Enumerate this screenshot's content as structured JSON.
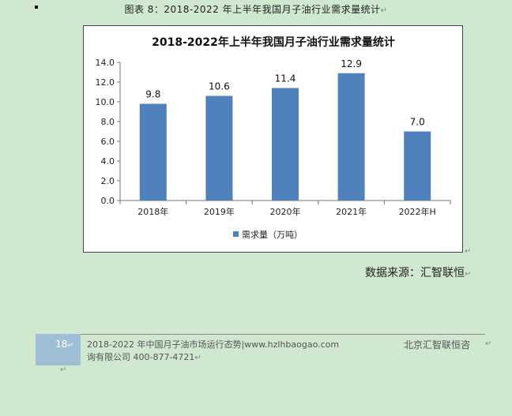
{
  "caption": {
    "text": "图表 8：2018-2022 年上半年我国月子油行业需求量统计"
  },
  "chart_data": {
    "type": "bar",
    "title": "2018-2022年上半年我国月子油行业需求量统计",
    "categories": [
      "2018年",
      "2019年",
      "2020年",
      "2021年",
      "2022年H"
    ],
    "series": [
      {
        "name": "需求量（万吨）",
        "values": [
          9.8,
          10.6,
          11.4,
          12.9,
          7.0
        ],
        "color": "#4f81bd"
      }
    ],
    "data_labels": [
      "9.8",
      "10.6",
      "11.4",
      "12.9",
      "7.0"
    ],
    "yticks": [
      "0.0",
      "2.0",
      "4.0",
      "6.0",
      "8.0",
      "10.0",
      "12.0",
      "14.0"
    ],
    "ylim": [
      0,
      14
    ],
    "xlabel": "",
    "ylabel": "",
    "legend_position": "bottom",
    "grid": false
  },
  "source": {
    "text": "数据来源：汇智联恒"
  },
  "footer": {
    "page_number": "18",
    "line1": "2018-2022 年中国月子油市场运行态势|www.hzlhbaogao.com",
    "line2": "询有限公司  400-877-4721",
    "company": "北京汇智联恒咨"
  },
  "marks": {
    "paragraph": "↵"
  }
}
